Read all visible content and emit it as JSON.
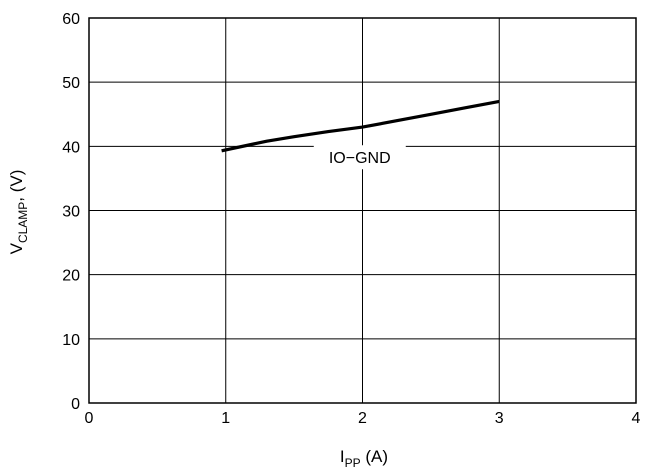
{
  "chart_data": {
    "type": "line",
    "title": "",
    "xlabel": {
      "main": "I",
      "sub": "PP",
      "unit": " (A)"
    },
    "ylabel": {
      "main": "V",
      "sub": "CLAMP",
      "unit": ", (V)"
    },
    "xlim": [
      0,
      4
    ],
    "ylim": [
      0,
      60
    ],
    "xticks": [
      0,
      1,
      2,
      3,
      4
    ],
    "yticks": [
      0,
      10,
      20,
      30,
      40,
      50,
      60
    ],
    "grid": true,
    "series": [
      {
        "name": "IO−GND",
        "x": [
          0.97,
          1.1,
          1.3,
          1.5,
          1.75,
          2.0,
          2.25,
          2.5,
          2.75,
          3.0
        ],
        "y": [
          39.3,
          39.9,
          40.8,
          41.5,
          42.3,
          43.0,
          44.0,
          45.0,
          46.0,
          47.0
        ]
      }
    ],
    "annotations": [
      {
        "text": "IO−GND",
        "x": 1.98,
        "y": 38.3
      }
    ]
  },
  "colors": {
    "line": "#000000",
    "grid": "#000000",
    "background": "#ffffff"
  }
}
